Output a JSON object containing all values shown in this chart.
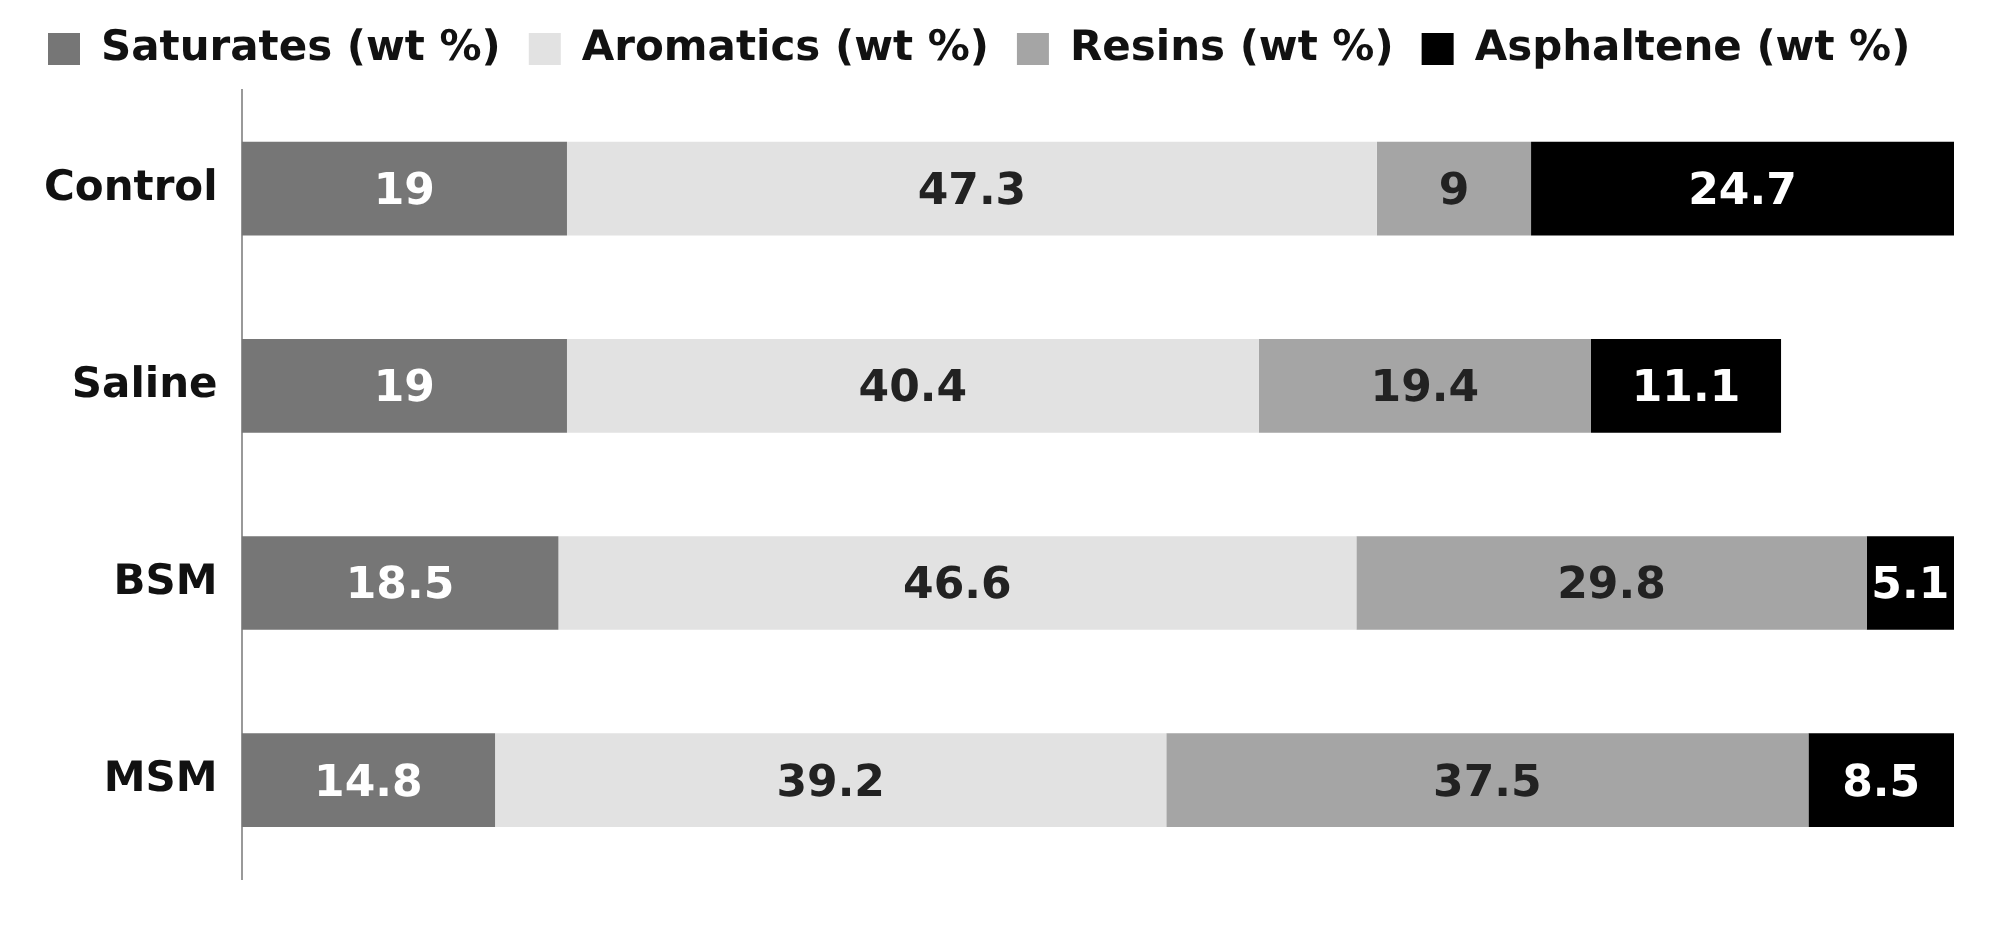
{
  "chart_data": {
    "type": "bar",
    "orientation": "horizontal",
    "stacked": true,
    "categories": [
      "Control",
      "Saline",
      "BSM",
      "MSM"
    ],
    "series": [
      {
        "name": "Saturates (wt %)",
        "color": "#767676",
        "values": [
          19,
          19,
          18.5,
          14.8
        ]
      },
      {
        "name": "Aromatics (wt %)",
        "color": "#e2e2e2",
        "values": [
          47.3,
          40.4,
          46.6,
          39.2
        ]
      },
      {
        "name": "Resins (wt %)",
        "color": "#a5a5a5",
        "values": [
          9,
          19.4,
          29.8,
          37.5
        ]
      },
      {
        "name": "Asphaltene (wt %)",
        "color": "#000000",
        "values": [
          24.7,
          11.1,
          5.1,
          8.5
        ]
      }
    ],
    "data_labels": true,
    "legend": "top",
    "grid": false,
    "tick_labels": "y"
  }
}
